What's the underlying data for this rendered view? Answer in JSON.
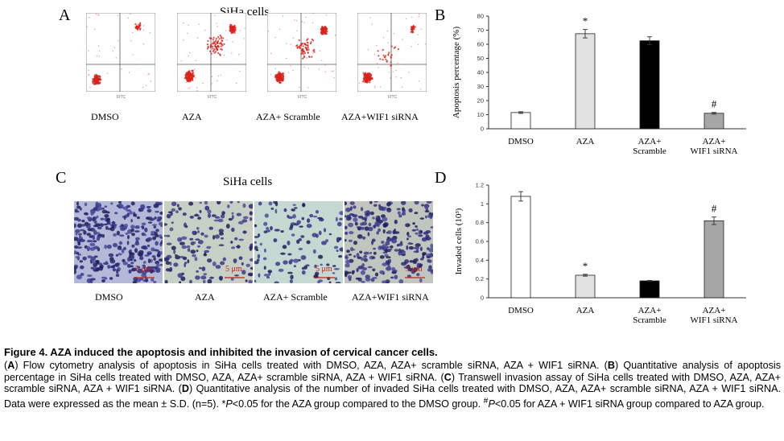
{
  "panel_a": {
    "letter": "A",
    "title": "SiHa cells",
    "labels": [
      "DMSO",
      "AZA",
      "AZA+ Scramble",
      "AZA+WIF1 siRNA"
    ],
    "axis_label": "FITC"
  },
  "panel_c": {
    "letter": "C",
    "title": "SiHa cells",
    "labels": [
      "DMSO",
      "AZA",
      "AZA+ Scramble",
      "AZA+WIF1 siRNA"
    ],
    "scale_bar": "5 μm"
  },
  "chart_data": [
    {
      "panel": "B",
      "type": "bar",
      "ylabel": "Apoptosis percentage (%)",
      "ylim": [
        0,
        80
      ],
      "yticks": [
        0,
        10,
        20,
        30,
        40,
        50,
        60,
        70,
        80
      ],
      "categories": [
        "DMSO",
        "AZA",
        "AZA+\nScramble",
        "AZA+\nWIF1 siRNA"
      ],
      "values": [
        11.5,
        67.5,
        62.5,
        11
      ],
      "errors": [
        0.6,
        3,
        2.8,
        0.6
      ],
      "bar_colors": [
        "#ffffff",
        "#e2e2e2",
        "#000000",
        "#a6a6a6"
      ],
      "annotations": [
        "",
        "*",
        "",
        "#"
      ]
    },
    {
      "panel": "D",
      "type": "bar",
      "ylabel": "Invaded cells (10³)",
      "ylim": [
        0,
        1.2
      ],
      "yticks": [
        "0",
        "0.2",
        "0.4",
        "0.6",
        "0.8",
        "1",
        "1.2"
      ],
      "categories": [
        "DMSO",
        "AZA",
        "AZA+\nScramble",
        "AZA+\nWIF1 siRNA"
      ],
      "values": [
        1.08,
        0.24,
        0.18,
        0.82
      ],
      "errors": [
        0.05,
        0.01,
        0.005,
        0.04
      ],
      "bar_colors": [
        "#ffffff",
        "#e2e2e2",
        "#000000",
        "#a6a6a6"
      ],
      "annotations": [
        "",
        "*",
        "",
        "#"
      ]
    }
  ],
  "caption": {
    "title": "Figure 4. AZA induced the apoptosis and inhibited the invasion of cervical cancer cells.",
    "a_letter": "A",
    "a_text": ") Flow cytometry analysis of apoptosis in SiHa cells treated with DMSO, AZA, AZA+ scramble siRNA, AZA + WIF1 siRNA. (",
    "b_letter": "B",
    "b_text": ") Quantitative analysis of apoptosis percentage in SiHa cells treated with DMSO, AZA, AZA+ scramble siRNA, AZA + WIF1 siRNA. (",
    "c_letter": "C",
    "c_text": ") Transwell invasion assay of SiHa cells treated with DMSO, AZA, AZA+ scramble siRNA, AZA + WIF1 siRNA. (",
    "d_letter": "D",
    "d_text": ") Quantitative analysis of the number of invaded SiHa cells treated with DMSO, AZA, AZA+ scramble siRNA, AZA + WIF1 siRNA. Data were expressed as the mean ± S.D. (n=5). *",
    "p1": "P",
    "t1": "<0.05 for the AZA group compared to the DMSO group. ",
    "hash": "#",
    "p2": "P",
    "t2": "<0.05 for AZA + WIF1 siRNA group compared to AZA group."
  }
}
